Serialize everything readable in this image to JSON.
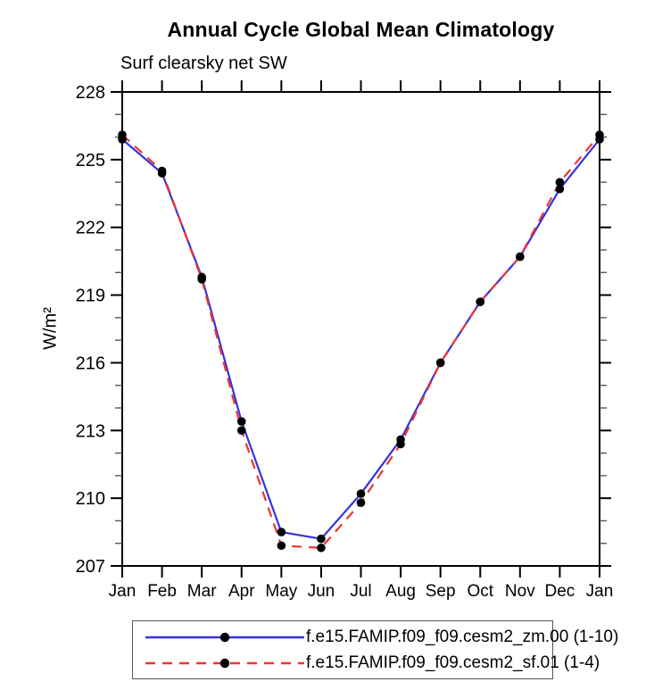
{
  "title": "Annual Cycle Global Mean Climatology",
  "subtitle": "Surf clearsky net SW",
  "y_axis_title": "W/m²",
  "colors": {
    "series_blue": "#3333e0",
    "series_red": "#ee3333",
    "marker": "#000000",
    "axis": "#000000",
    "minor_tick": "#555555"
  },
  "legend": {
    "entries": [
      {
        "label": "f.e15.FAMIP.f09_f09.cesm2_zm.00 (1-10)",
        "color": "#3333e0",
        "style": "solid"
      },
      {
        "label": "f.e15.FAMIP.f09_f09.cesm2_sf.01 (1-4)",
        "color": "#ee3333",
        "style": "dashed"
      }
    ]
  },
  "chart_data": {
    "type": "line",
    "title": "Annual Cycle Global Mean Climatology",
    "subtitle": "Surf clearsky net SW",
    "ylabel": "W/m²",
    "xlabel": "",
    "x_tick_labels": [
      "Jan",
      "Feb",
      "Mar",
      "Apr",
      "May",
      "Jun",
      "Jul",
      "Aug",
      "Sep",
      "Oct",
      "Nov",
      "Dec",
      "Jan"
    ],
    "ylim": [
      207,
      228
    ],
    "y_ticks_major": [
      207,
      210,
      213,
      216,
      219,
      222,
      225,
      228
    ],
    "y_minor_step": 1,
    "grid": false,
    "legend_position": "bottom",
    "marker": "filled-circle",
    "series": [
      {
        "name": "f.e15.FAMIP.f09_f09.cesm2_zm.00 (1-10)",
        "color": "#3333e0",
        "style": "solid",
        "values": [
          225.9,
          224.4,
          219.8,
          213.4,
          208.5,
          208.2,
          210.2,
          212.6,
          216.0,
          218.7,
          220.7,
          223.7,
          225.9
        ]
      },
      {
        "name": "f.e15.FAMIP.f09_f09.cesm2_sf.01 (1-4)",
        "color": "#ee3333",
        "style": "dashed",
        "values": [
          226.1,
          224.5,
          219.7,
          213.0,
          207.9,
          207.8,
          209.8,
          212.4,
          216.0,
          218.7,
          220.7,
          224.0,
          226.1
        ]
      }
    ]
  }
}
